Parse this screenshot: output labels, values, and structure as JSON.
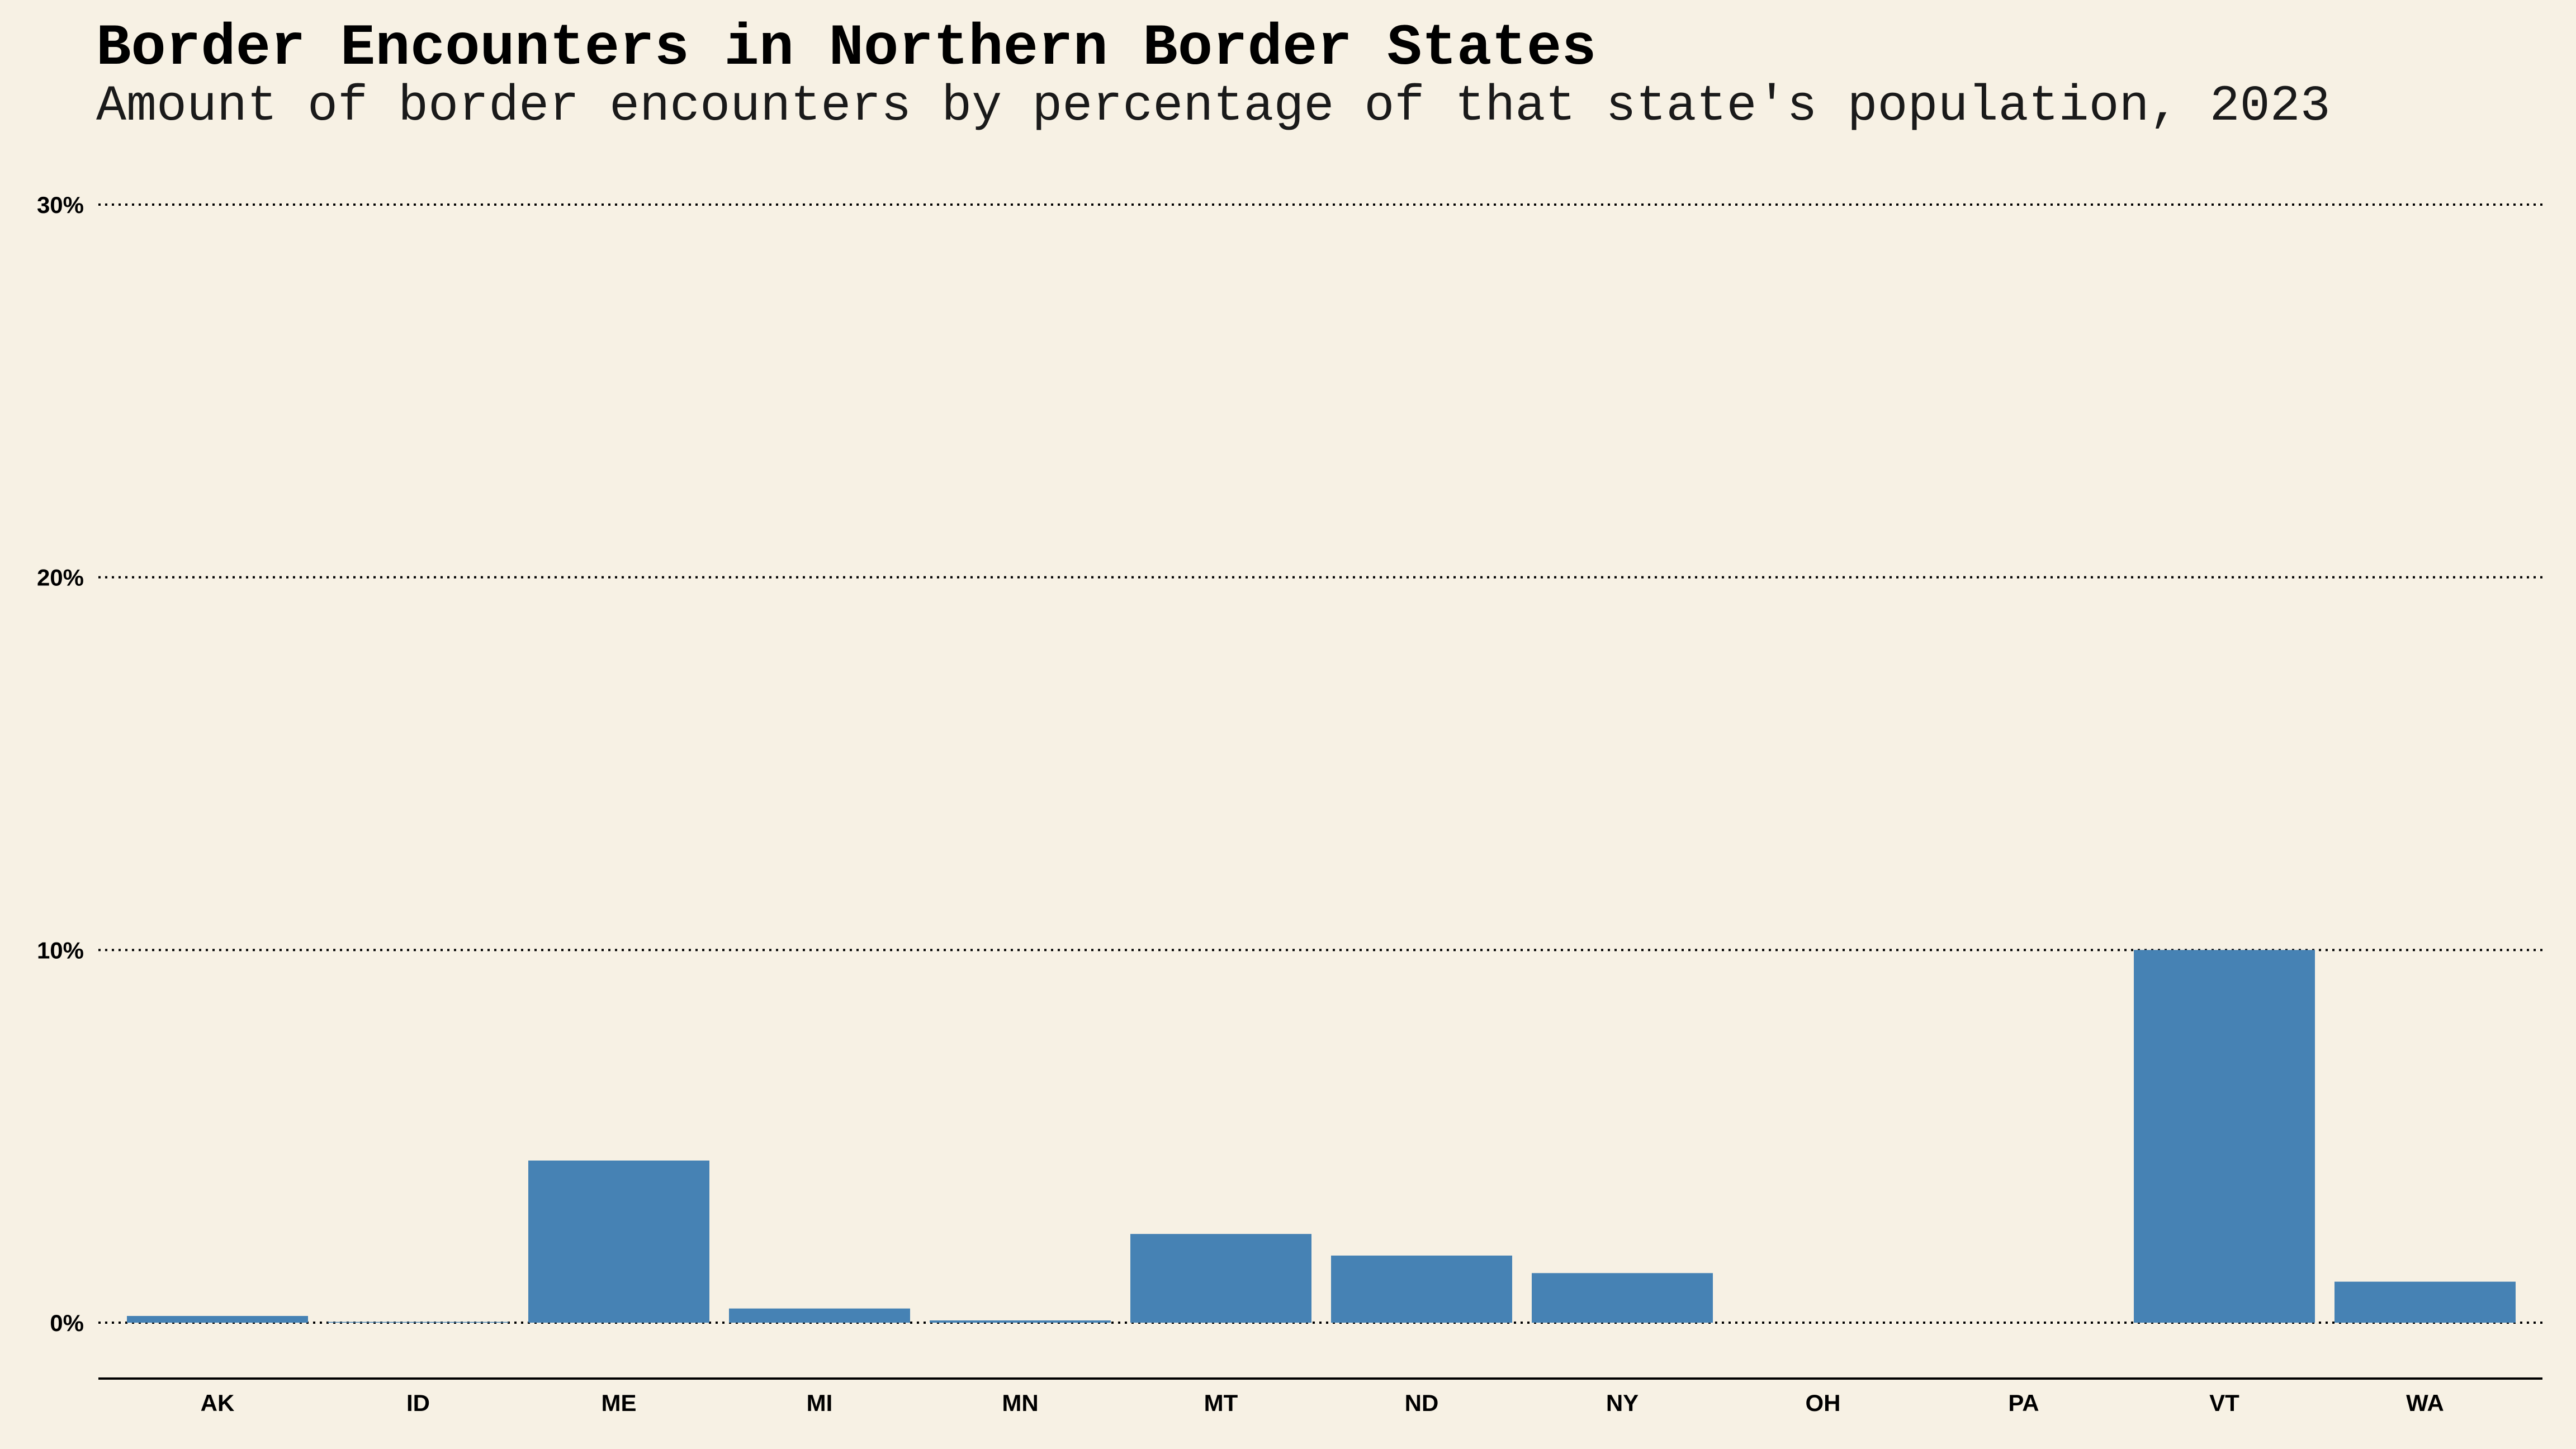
{
  "chart_data": {
    "type": "bar",
    "title": "Border Encounters in Northern Border States",
    "subtitle": "Amount of border encounters by percentage of that state's population, 2023",
    "xlabel": "",
    "ylabel": "",
    "categories": [
      "AK",
      "ID",
      "ME",
      "MI",
      "MN",
      "MT",
      "ND",
      "NY",
      "OH",
      "PA",
      "VT",
      "WA"
    ],
    "values": [
      0.18,
      0.02,
      4.35,
      0.38,
      0.06,
      2.38,
      1.8,
      1.33,
      0.0,
      0.0,
      10.0,
      1.1
    ],
    "ylim": [
      0,
      30
    ],
    "yticks": [
      0,
      10,
      20,
      30
    ],
    "ytick_labels": [
      "0%",
      "10%",
      "20%",
      "30%"
    ],
    "grid": "horizontal dotted",
    "bar_color": "#4682b4",
    "background_color": "#f7f1e4"
  }
}
